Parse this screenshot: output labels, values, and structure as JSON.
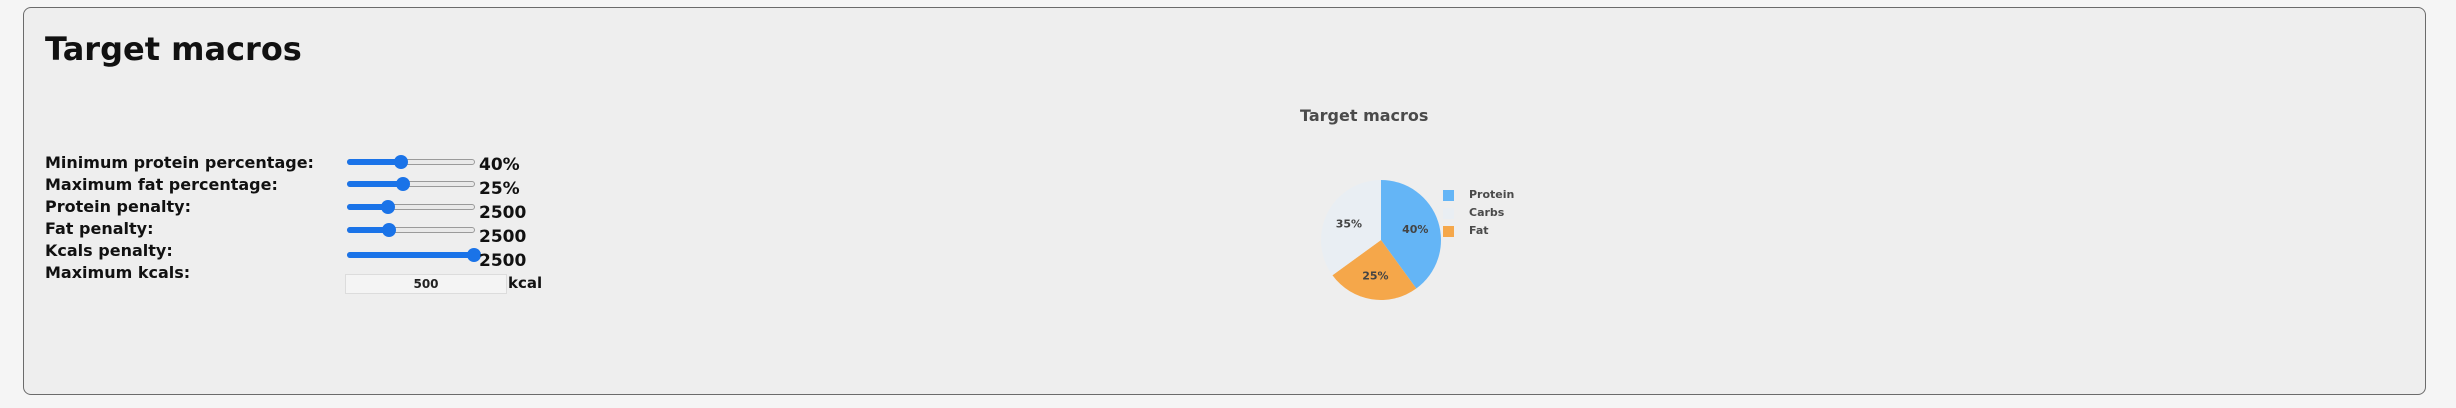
{
  "title": "Target macros",
  "settings": [
    {
      "label": "Minimum protein percentage:",
      "value": "40%",
      "slider_fraction": 0.42
    },
    {
      "label": "Maximum fat percentage:",
      "value": "25%",
      "slider_fraction": 0.44
    },
    {
      "label": "Protein penalty:",
      "value": "2500",
      "slider_fraction": 0.32
    },
    {
      "label": "Fat penalty:",
      "value": "2500",
      "slider_fraction": 0.33
    },
    {
      "label": "Kcals penalty:",
      "value": "2500",
      "slider_fraction": 0.99
    }
  ],
  "max_kcals": {
    "label": "Maximum kcals:",
    "value": "500",
    "unit": "kcal"
  },
  "colors": {
    "slider_accent": "#1a73e8",
    "protein": "#64b5f6",
    "carbs": "#e9eef3",
    "fat": "#f5a74a"
  },
  "chart_data": {
    "type": "pie",
    "title": "Target macros",
    "slices": [
      {
        "name": "Protein",
        "value": 40,
        "label": "40%"
      },
      {
        "name": "Fat",
        "value": 25,
        "label": "25%"
      },
      {
        "name": "Carbs",
        "value": 35,
        "label": "35%"
      }
    ],
    "legend": [
      "Protein",
      "Carbs",
      "Fat"
    ],
    "legend_placement": "right"
  }
}
